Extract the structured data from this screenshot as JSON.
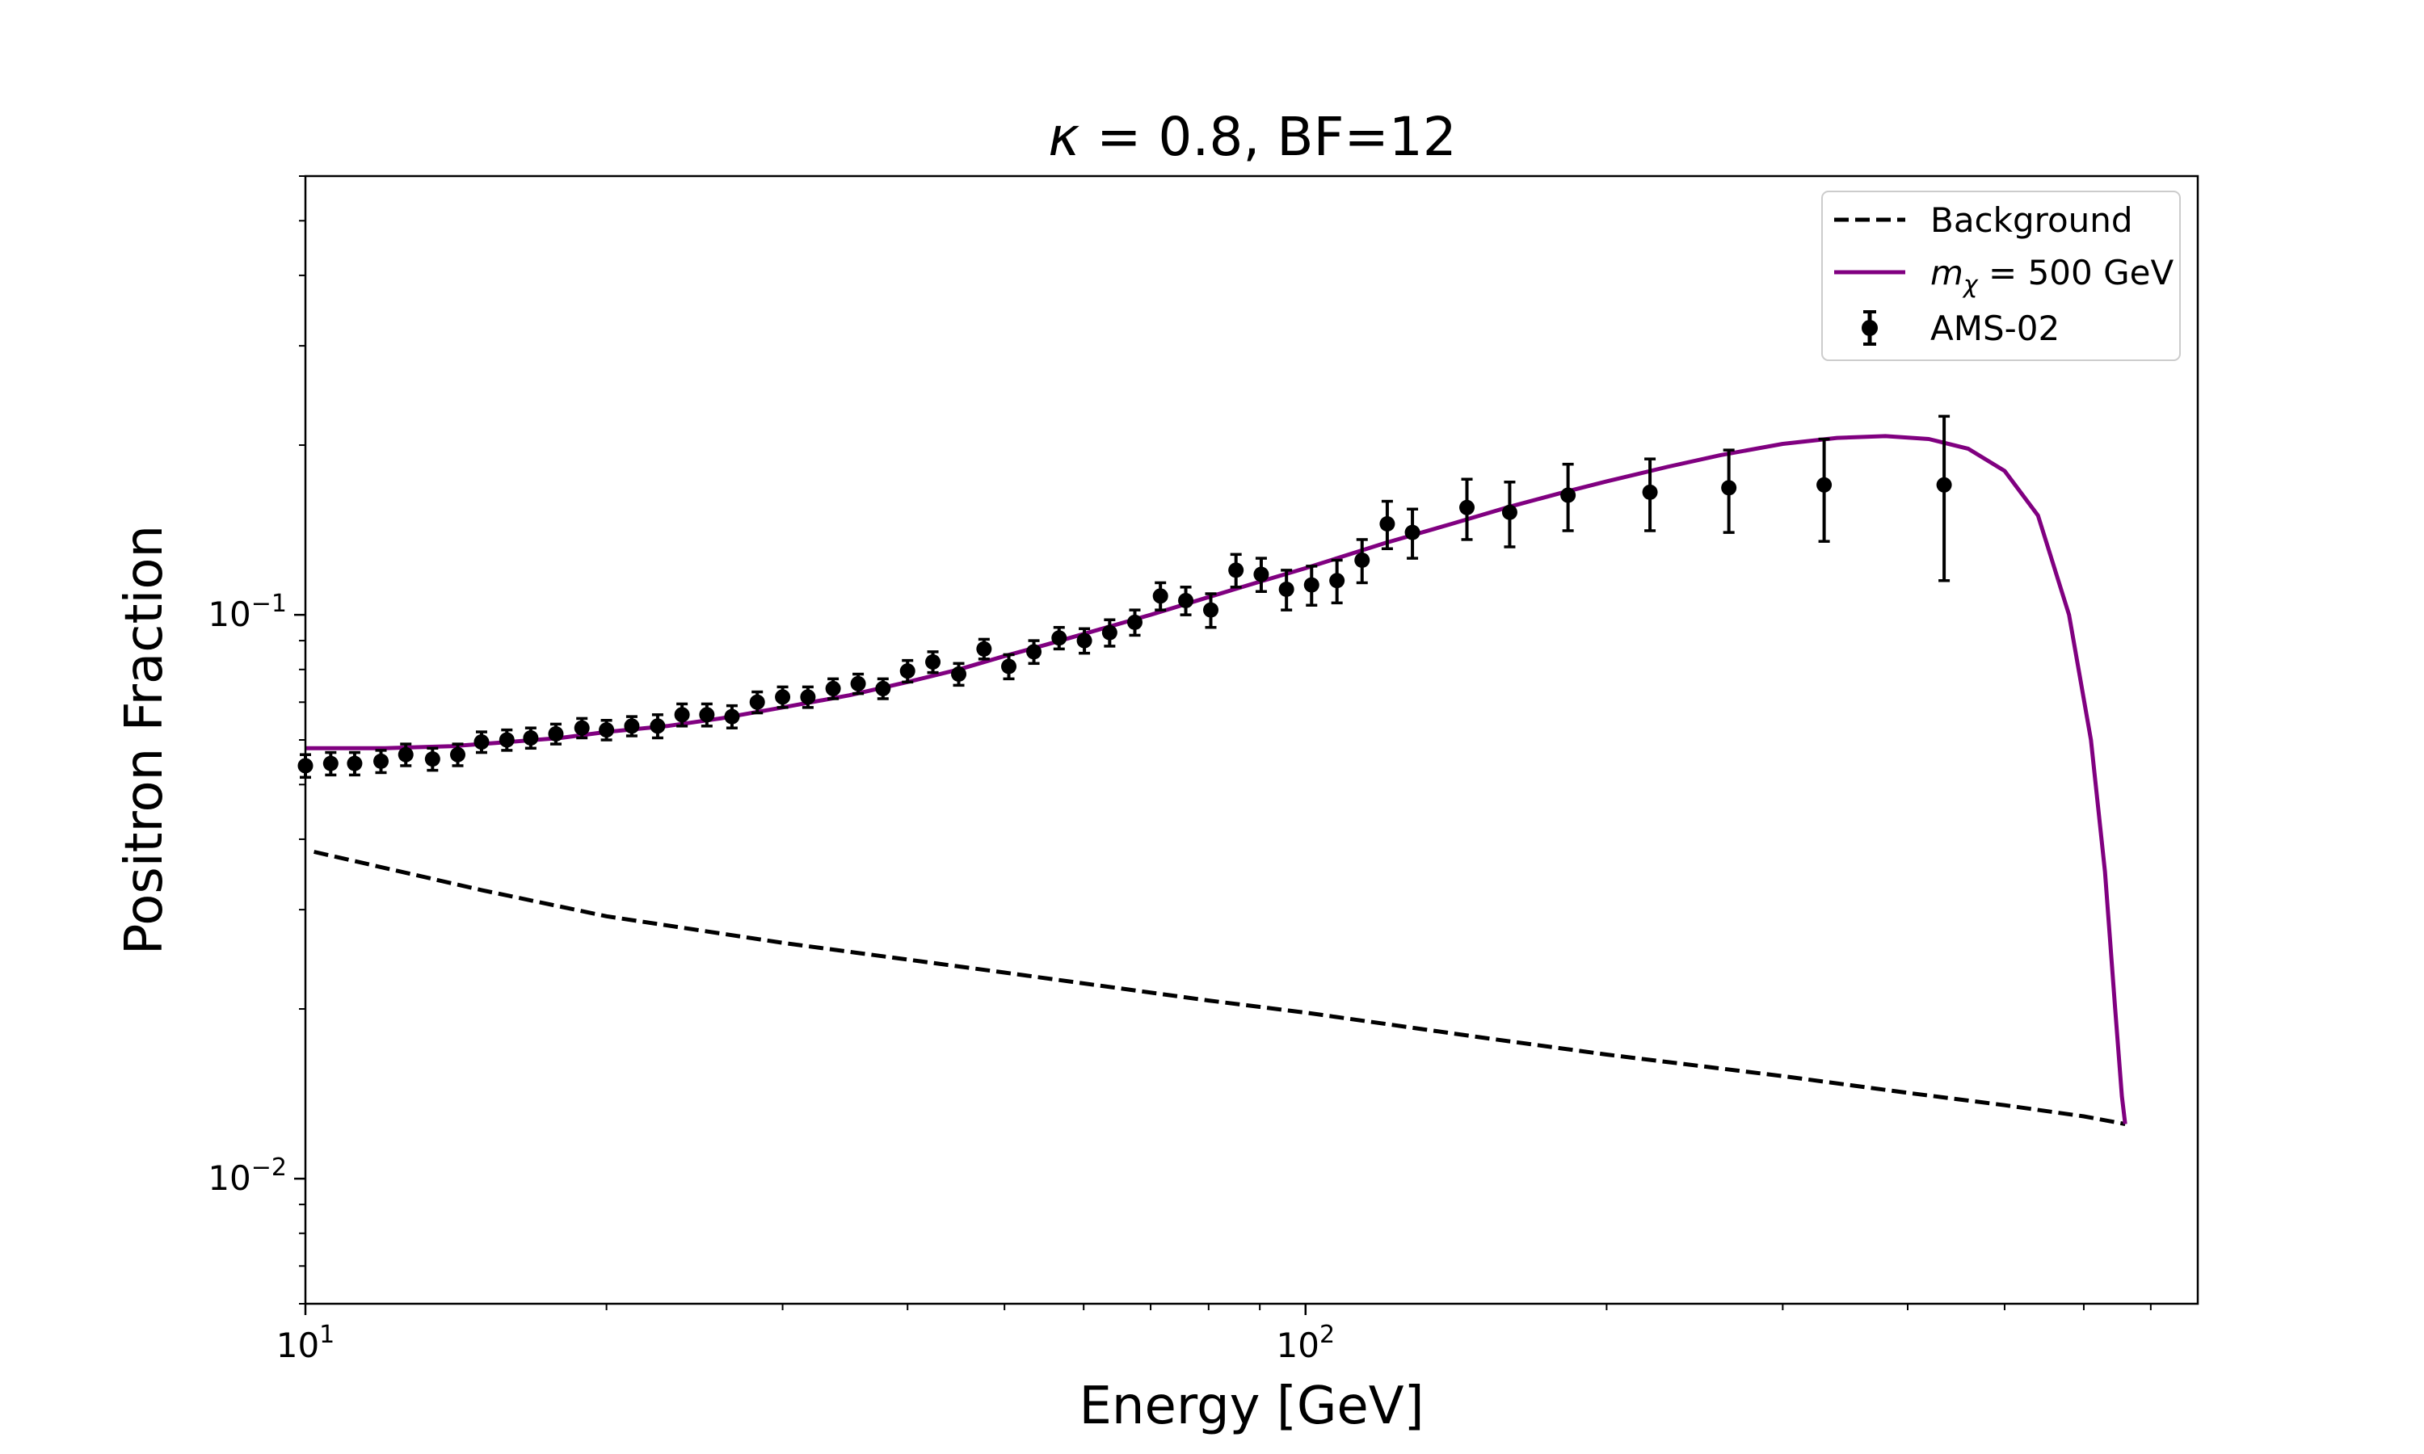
{
  "chart_data": {
    "type": "scatter",
    "title": "κ = 0.8, BF=12",
    "title_parts": {
      "kappa": "κ",
      "rest": " = 0.8, BF=12"
    },
    "xlabel": "Energy [GeV]",
    "ylabel": "Positron Fraction",
    "xscale": "log",
    "yscale": "log",
    "xlim": [
      10,
      780
    ],
    "ylim": [
      0.006,
      0.6
    ],
    "x_ticks": [
      {
        "value": 10,
        "base": "10",
        "exp": "1"
      },
      {
        "value": 100,
        "base": "10",
        "exp": "2"
      }
    ],
    "y_ticks": [
      {
        "value": 0.01,
        "base": "10",
        "exp": "−2"
      },
      {
        "value": 0.1,
        "base": "10",
        "exp": "−1"
      }
    ],
    "grid": false,
    "legend_position": "top-right",
    "legend": {
      "background": {
        "label": "Background"
      },
      "model": {
        "m": "m",
        "sub": "χ",
        "rest": " = 500 GeV"
      },
      "data": {
        "label": "AMS-02"
      }
    },
    "colors": {
      "model": "#800080",
      "background": "#000000",
      "data": "#000000"
    },
    "series": [
      {
        "name": "Background",
        "style": "dashed",
        "x": [
          10.2,
          15,
          20,
          30,
          50,
          80,
          100,
          150,
          200,
          300,
          400,
          500,
          600,
          660
        ],
        "y": [
          0.038,
          0.0325,
          0.0292,
          0.0262,
          0.0232,
          0.0207,
          0.0197,
          0.0178,
          0.0166,
          0.0152,
          0.0142,
          0.0135,
          0.0129,
          0.0125
        ]
      },
      {
        "name": "m_χ = 500 GeV",
        "style": "solid",
        "x": [
          10,
          12,
          14,
          16,
          18,
          20,
          23,
          26,
          30,
          35,
          40,
          45,
          50,
          55,
          60,
          70,
          80,
          90,
          100,
          120,
          140,
          160,
          180,
          200,
          230,
          260,
          300,
          340,
          380,
          420,
          460,
          500,
          540,
          580,
          610,
          630,
          645,
          655,
          660
        ],
        "y": [
          0.058,
          0.058,
          0.0585,
          0.0595,
          0.0605,
          0.062,
          0.0635,
          0.0655,
          0.0685,
          0.072,
          0.076,
          0.08,
          0.0845,
          0.0885,
          0.0925,
          0.1,
          0.1075,
          0.1145,
          0.121,
          0.134,
          0.145,
          0.1555,
          0.1645,
          0.1725,
          0.183,
          0.192,
          0.201,
          0.206,
          0.2075,
          0.205,
          0.197,
          0.18,
          0.15,
          0.1,
          0.06,
          0.035,
          0.02,
          0.014,
          0.0125
        ]
      },
      {
        "name": "AMS-02",
        "style": "errorbar",
        "x": [
          10.0,
          10.6,
          11.2,
          11.9,
          12.6,
          13.4,
          14.2,
          15.0,
          15.9,
          16.8,
          17.8,
          18.9,
          20.0,
          21.2,
          22.5,
          23.8,
          25.2,
          26.7,
          28.3,
          30.0,
          31.8,
          33.7,
          35.7,
          37.8,
          40.0,
          42.4,
          45.0,
          47.7,
          50.5,
          53.5,
          56.7,
          60.1,
          63.7,
          67.5,
          71.6,
          75.9,
          80.4,
          85.2,
          90.3,
          95.7,
          101.4,
          107.5,
          113.9,
          120.7,
          127.9,
          145.0,
          160.0,
          183.0,
          221.0,
          265.0,
          330.0,
          435.0
        ],
        "y": [
          0.054,
          0.0545,
          0.0545,
          0.055,
          0.0565,
          0.0555,
          0.0565,
          0.0595,
          0.06,
          0.0605,
          0.0615,
          0.063,
          0.0625,
          0.0635,
          0.0635,
          0.0665,
          0.0665,
          0.066,
          0.07,
          0.0715,
          0.0715,
          0.074,
          0.0755,
          0.074,
          0.0795,
          0.0825,
          0.0785,
          0.087,
          0.081,
          0.086,
          0.091,
          0.09,
          0.093,
          0.097,
          0.108,
          0.106,
          0.102,
          0.12,
          0.118,
          0.111,
          0.113,
          0.115,
          0.125,
          0.145,
          0.14,
          0.155,
          0.152,
          0.163,
          0.165,
          0.168,
          0.17,
          0.17
        ],
        "yerr": [
          0.0025,
          0.0025,
          0.0025,
          0.0025,
          0.0025,
          0.0025,
          0.0025,
          0.0025,
          0.0025,
          0.0025,
          0.0025,
          0.0025,
          0.0025,
          0.0025,
          0.003,
          0.003,
          0.003,
          0.003,
          0.003,
          0.003,
          0.003,
          0.003,
          0.003,
          0.003,
          0.0035,
          0.0035,
          0.0035,
          0.0035,
          0.004,
          0.004,
          0.004,
          0.0045,
          0.005,
          0.005,
          0.006,
          0.006,
          0.007,
          0.008,
          0.008,
          0.009,
          0.009,
          0.01,
          0.011,
          0.014,
          0.014,
          0.019,
          0.02,
          0.022,
          0.024,
          0.028,
          0.035,
          0.055
        ]
      }
    ]
  }
}
